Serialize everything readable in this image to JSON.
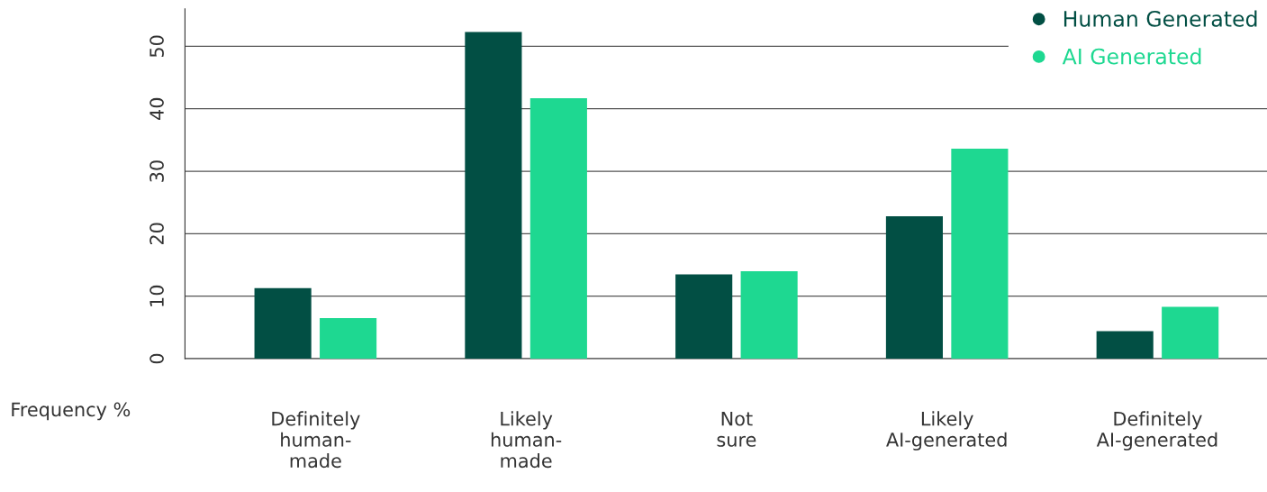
{
  "chart_data": {
    "type": "bar",
    "ylabel": "Frequency %",
    "categories": [
      "Definitely\nhuman-\nmade",
      "Likely\nhuman-\nmade",
      "Not\nsure",
      "Likely\nAI-generated",
      "Definitely\nAI-generated"
    ],
    "series": [
      {
        "name": "Human Generated",
        "color": "#024f44",
        "values": [
          11.3,
          52.3,
          13.5,
          22.8,
          4.4
        ]
      },
      {
        "name": "AI Generated",
        "color": "#1ed891",
        "values": [
          6.5,
          41.7,
          14.0,
          33.6,
          8.3
        ]
      }
    ],
    "ylim": [
      0,
      56
    ],
    "yticks": [
      0,
      10,
      20,
      30,
      40,
      50
    ],
    "grid": "y",
    "legend": "top right"
  }
}
